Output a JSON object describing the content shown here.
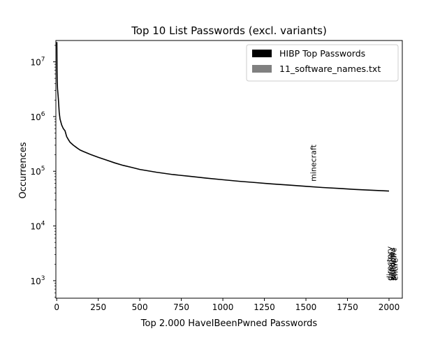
{
  "chart_data": {
    "type": "line",
    "title": "Top 10 List Passwords (excl. variants)",
    "xlabel": "Top 2.000 HaveIBeenPwned Passwords",
    "ylabel": "Occurrences",
    "xlim": [
      -5,
      2080
    ],
    "ylim_log10": [
      2.68,
      7.39
    ],
    "y_scale": "log",
    "x_ticks": [
      0,
      250,
      500,
      750,
      1000,
      1250,
      1500,
      1750,
      2000
    ],
    "y_ticks": [
      {
        "exp": 3,
        "label": "10",
        "sup": "3"
      },
      {
        "exp": 4,
        "label": "10",
        "sup": "4"
      },
      {
        "exp": 5,
        "label": "10",
        "sup": "5"
      },
      {
        "exp": 6,
        "label": "10",
        "sup": "6"
      },
      {
        "exp": 7,
        "label": "10",
        "sup": "7"
      }
    ],
    "legend_position": "top-right",
    "legend": [
      {
        "label": "HIBP Top Passwords",
        "color": "#000000"
      },
      {
        "label": "11_software_names.txt",
        "color": "#808080"
      }
    ],
    "series": [
      {
        "name": "HIBP Top Passwords",
        "color": "#000000",
        "x": [
          1,
          2,
          3,
          5,
          8,
          10,
          15,
          20,
          30,
          40,
          50,
          60,
          70,
          80,
          100,
          120,
          140,
          160,
          200,
          250,
          300,
          350,
          400,
          450,
          500,
          600,
          700,
          800,
          900,
          1000,
          1100,
          1200,
          1300,
          1400,
          1500,
          1600,
          1700,
          1800,
          1900,
          2000
        ],
        "y": [
          23000000,
          7000000,
          4500000,
          3200000,
          2500000,
          2100000,
          1200000,
          900000,
          700000,
          600000,
          550000,
          430000,
          380000,
          340000,
          300000,
          270000,
          245000,
          230000,
          205000,
          180000,
          160000,
          142000,
          128000,
          118000,
          108000,
          96000,
          87000,
          81000,
          75000,
          70000,
          65500,
          62000,
          58500,
          55800,
          53000,
          50500,
          48500,
          46500,
          45000,
          43500
        ]
      }
    ],
    "annotations": [
      {
        "text": "minecraft",
        "x": 1545,
        "y": 65000
      },
      {
        "text": "directory",
        "x": 2003,
        "y": 1000
      },
      {
        "text": "sample",
        "x": 2011,
        "y": 1000
      },
      {
        "text": "windows",
        "x": 2019,
        "y": 1000
      },
      {
        "text": "software",
        "x": 2027,
        "y": 1000
      },
      {
        "text": "entire",
        "x": 2035,
        "y": 1000
      }
    ]
  }
}
